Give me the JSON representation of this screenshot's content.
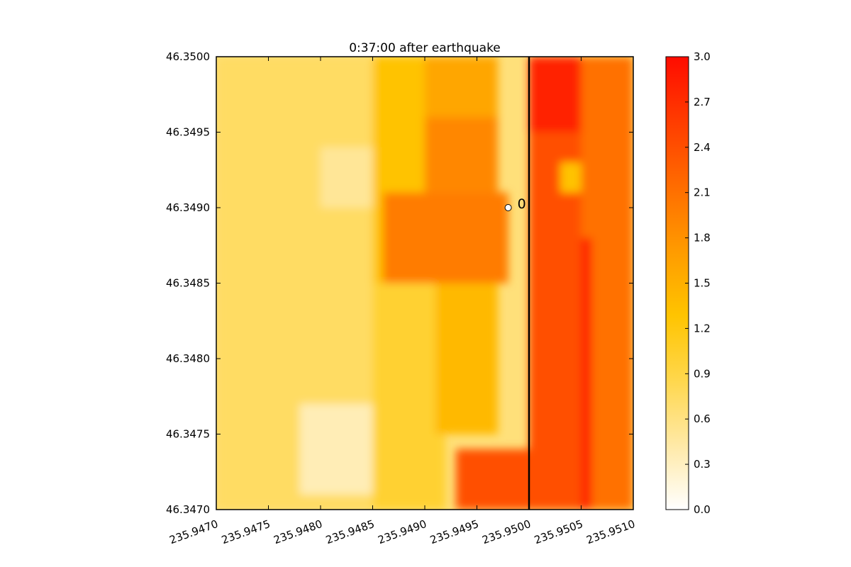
{
  "chart_data": {
    "type": "heatmap",
    "title": "0:37:00 after earthquake",
    "xlabel": "",
    "ylabel": "",
    "xlim": [
      235.947,
      235.951
    ],
    "ylim": [
      46.347,
      46.35
    ],
    "x_ticks": [
      "235.9470",
      "235.9475",
      "235.9480",
      "235.9485",
      "235.9490",
      "235.9495",
      "235.9500",
      "235.9505",
      "235.9510"
    ],
    "y_ticks": [
      "46.3470",
      "46.3475",
      "46.3480",
      "46.3485",
      "46.3490",
      "46.3495",
      "46.3500"
    ],
    "colorbar": {
      "min": 0.0,
      "max": 3.0,
      "ticks": [
        "0.0",
        "0.3",
        "0.6",
        "0.9",
        "1.2",
        "1.5",
        "1.8",
        "2.1",
        "2.4",
        "2.7",
        "3.0"
      ],
      "colors": [
        "#ffffff",
        "#ffe9a6",
        "#ffd74c",
        "#ffc400",
        "#ff9b00",
        "#ff6c00",
        "#ff3c00",
        "#ff0c00"
      ]
    },
    "vertical_line": {
      "x": 235.95,
      "color": "#000000"
    },
    "gauge": {
      "x": 235.9498,
      "y": 46.349,
      "label": "0"
    },
    "regions": [
      {
        "x": [
          235.947,
          235.9485
        ],
        "y": [
          46.347,
          46.35
        ],
        "value": 0.75
      },
      {
        "x": [
          235.948,
          235.9486
        ],
        "y": [
          46.349,
          46.3494
        ],
        "value": 0.5
      },
      {
        "x": [
          235.9478,
          235.9486
        ],
        "y": [
          46.3471,
          46.3477
        ],
        "value": 0.35
      },
      {
        "x": [
          235.9485,
          235.9492
        ],
        "y": [
          46.347,
          46.3485
        ],
        "value": 1.0
      },
      {
        "x": [
          235.9485,
          235.949
        ],
        "y": [
          46.3485,
          46.35
        ],
        "value": 1.3
      },
      {
        "x": [
          235.949,
          235.9497
        ],
        "y": [
          46.3496,
          46.35
        ],
        "value": 1.6
      },
      {
        "x": [
          235.9486,
          235.9498
        ],
        "y": [
          46.3485,
          46.3491
        ],
        "value": 2.0
      },
      {
        "x": [
          235.949,
          235.9497
        ],
        "y": [
          46.3491,
          46.3496
        ],
        "value": 1.9
      },
      {
        "x": [
          235.9491,
          235.9497
        ],
        "y": [
          46.3475,
          46.3485
        ],
        "value": 1.4
      },
      {
        "x": [
          235.9493,
          235.95
        ],
        "y": [
          46.347,
          46.3474
        ],
        "value": 2.4
      },
      {
        "x": [
          235.95,
          235.9505
        ],
        "y": [
          46.347,
          46.35
        ],
        "value": 2.4
      },
      {
        "x": [
          235.9505,
          235.951
        ],
        "y": [
          46.347,
          46.35
        ],
        "value": 2.1
      },
      {
        "x": [
          235.95,
          235.9505
        ],
        "y": [
          46.3495,
          46.35
        ],
        "value": 2.8
      },
      {
        "x": [
          235.9505,
          235.9506
        ],
        "y": [
          46.347,
          46.3488
        ],
        "value": 2.8
      },
      {
        "x": [
          235.9503,
          235.9505
        ],
        "y": [
          46.3491,
          46.3493
        ],
        "value": 1.3
      }
    ]
  }
}
